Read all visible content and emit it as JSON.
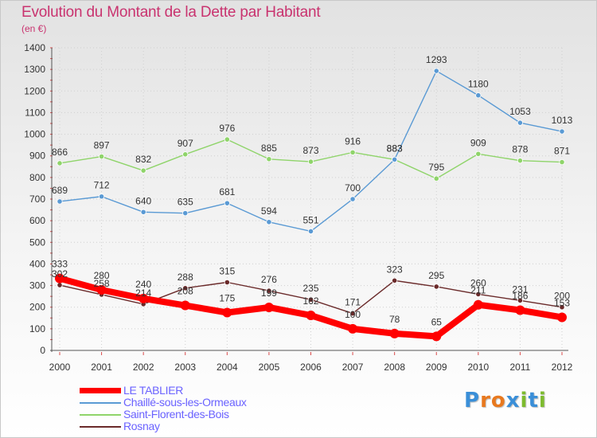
{
  "header": {
    "title": "Evolution du Montant de la Dette par Habitant",
    "unit": "(en €)"
  },
  "logo": {
    "text": "Proxiti",
    "letters": [
      "P",
      "r",
      "o",
      "x",
      "i",
      "t",
      "i"
    ],
    "colors": [
      "#3a8fd8",
      "#e8791f",
      "#e8791f",
      "#3a8fd8",
      "#7dbb2f",
      "#3a8fd8",
      "#7dbb2f"
    ]
  },
  "chart_data": {
    "type": "line",
    "title": "Evolution du Montant de la Dette par Habitant",
    "ylabel": "(en €)",
    "xlabel": "",
    "x": [
      "2000",
      "2001",
      "2002",
      "2003",
      "2004",
      "2005",
      "2006",
      "2007",
      "2008",
      "2009",
      "2010",
      "2011",
      "2012"
    ],
    "yticks": [
      "0",
      "100",
      "200",
      "300",
      "400",
      "500",
      "600",
      "700",
      "800",
      "900",
      "1000",
      "1100",
      "1200",
      "1300",
      "1400"
    ],
    "ylim": [
      0,
      1400
    ],
    "grid": true,
    "legend_position": "bottom-left",
    "series": [
      {
        "name": "LE TABLIER",
        "color": "#ff0000",
        "values": [
          333,
          280,
          240,
          208,
          175,
          199,
          162,
          100,
          78,
          65,
          211,
          186,
          153
        ],
        "labels": [
          "333",
          "280",
          "240",
          "208",
          "175",
          "199",
          "162",
          "100",
          "78",
          "65",
          "211",
          "186",
          "153"
        ]
      },
      {
        "name": "Chaillé-sous-les-Ormeaux",
        "color": "#5a9ad4",
        "values": [
          689,
          712,
          640,
          635,
          681,
          594,
          551,
          700,
          883,
          1293,
          1180,
          1053,
          1013
        ],
        "labels": [
          "689",
          "712",
          "640",
          "635",
          "681",
          "594",
          "551",
          "700",
          "883",
          "1293",
          "1180",
          "1053",
          "1013"
        ]
      },
      {
        "name": "Saint-Florent-des-Bois",
        "color": "#8fd46a",
        "values": [
          866,
          897,
          832,
          907,
          976,
          885,
          873,
          916,
          883,
          795,
          909,
          878,
          871
        ],
        "labels": [
          "866",
          "897",
          "832",
          "907",
          "976",
          "885",
          "873",
          "916",
          "883",
          "795",
          "909",
          "878",
          "871"
        ]
      },
      {
        "name": "Rosnay",
        "color": "#6a2a2a",
        "values": [
          302,
          258,
          214,
          288,
          315,
          276,
          235,
          171,
          323,
          295,
          260,
          231,
          200
        ],
        "labels": [
          "302",
          "258",
          "214",
          "288",
          "315",
          "276",
          "235",
          "171",
          "323",
          "295",
          "260",
          "231",
          "200"
        ]
      }
    ]
  }
}
